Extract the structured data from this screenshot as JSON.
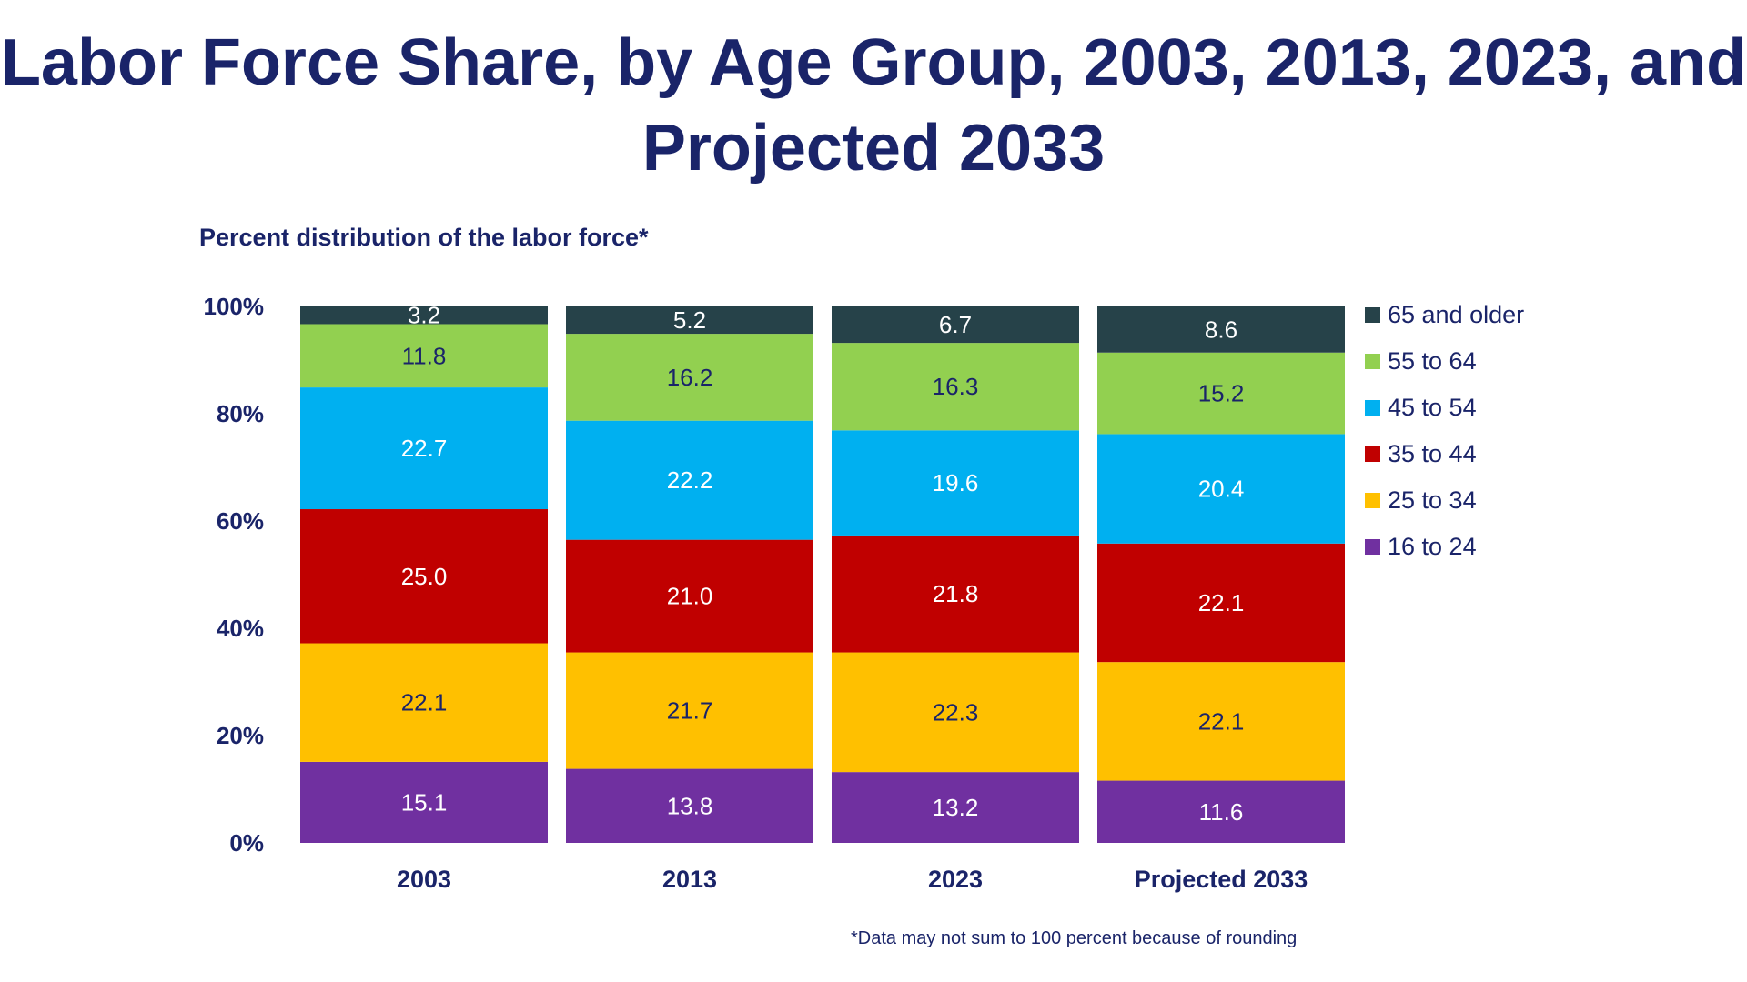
{
  "chart_data": {
    "type": "bar",
    "stacked": true,
    "title": "Labor Force Share, by Age Group, 2003, 2013, 2023, and Projected 2033",
    "subtitle": "Percent distribution of the labor force*",
    "footnote": "*Data may not sum to 100 percent because of rounding",
    "categories": [
      "2003",
      "2013",
      "2023",
      "Projected 2033"
    ],
    "ylim": [
      0,
      100
    ],
    "y_ticks": [
      "0%",
      "20%",
      "40%",
      "60%",
      "80%",
      "100%"
    ],
    "legend_position": "right",
    "series": [
      {
        "name": "16 to 24",
        "color": "#7030a0",
        "label_color": "#ffffff",
        "values": [
          15.1,
          13.8,
          13.2,
          11.6
        ]
      },
      {
        "name": "25 to 34",
        "color": "#ffc000",
        "label_color": "#1a2469",
        "values": [
          22.1,
          21.7,
          22.3,
          22.1
        ]
      },
      {
        "name": "35 to 44",
        "color": "#c00000",
        "label_color": "#ffffff",
        "values": [
          25.0,
          21.0,
          21.8,
          22.1
        ]
      },
      {
        "name": "45 to 54",
        "color": "#00b0f0",
        "label_color": "#ffffff",
        "values": [
          22.7,
          22.2,
          19.6,
          20.4
        ]
      },
      {
        "name": "55 to 64",
        "color": "#92d050",
        "label_color": "#1a2469",
        "values": [
          11.8,
          16.2,
          16.3,
          15.2
        ]
      },
      {
        "name": "65 and older",
        "color": "#264249",
        "label_color": "#ffffff",
        "values": [
          3.2,
          5.2,
          6.7,
          8.6
        ]
      }
    ]
  }
}
